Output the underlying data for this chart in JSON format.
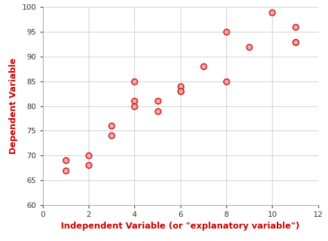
{
  "x": [
    1,
    1,
    2,
    2,
    3,
    3,
    4,
    4,
    4,
    5,
    5,
    6,
    6,
    6,
    7,
    8,
    8,
    9,
    10,
    11,
    11,
    11
  ],
  "y": [
    69,
    67,
    70,
    68,
    76,
    74,
    85,
    81,
    80,
    81,
    79,
    84,
    83,
    83,
    88,
    95,
    85,
    92,
    99,
    96,
    93,
    93
  ],
  "xlim": [
    0,
    12
  ],
  "ylim": [
    60,
    100
  ],
  "xticks": [
    0,
    2,
    4,
    6,
    8,
    10,
    12
  ],
  "yticks": [
    60,
    65,
    70,
    75,
    80,
    85,
    90,
    95,
    100
  ],
  "xlabel": "Independent Variable (or \"explanatory variable\")",
  "ylabel": "Dependent Variable",
  "marker_facecolor": "#f5aaaa",
  "marker_edgecolor": "#cc2222",
  "marker_size": 6,
  "marker_linewidth": 1.2,
  "grid_color": "#d0d0d0",
  "axis_label_color": "#cc0000",
  "tick_color": "#333333",
  "tick_fontsize": 8,
  "xlabel_fontsize": 9,
  "ylabel_fontsize": 9,
  "bg_color": "#ffffff",
  "spine_color": "#aaaaaa"
}
